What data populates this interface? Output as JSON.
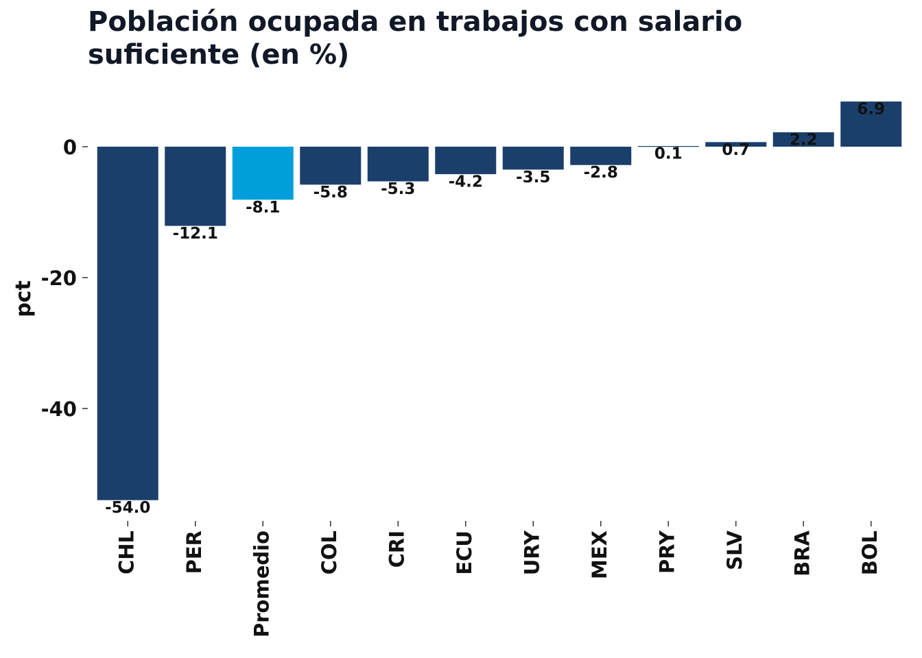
{
  "chart_data": {
    "type": "bar",
    "title": "Población ocupada en trabajos con salario suficiente (en %)",
    "ylabel": "pct",
    "xlabel": "",
    "ylim": [
      -55,
      8
    ],
    "yticks": [
      0,
      -20,
      -40
    ],
    "grid": false,
    "categories": [
      "CHL",
      "PER",
      "Promedio",
      "COL",
      "CRI",
      "ECU",
      "URY",
      "MEX",
      "PRY",
      "SLV",
      "BRA",
      "BOL"
    ],
    "values": [
      -54.0,
      -12.1,
      -8.1,
      -5.8,
      -5.3,
      -4.2,
      -3.5,
      -2.8,
      0.1,
      0.7,
      2.2,
      6.9
    ],
    "data_labels": [
      "-54.0",
      "-12.1",
      "-8.1",
      "-5.8",
      "-5.3",
      "-4.2",
      "-3.5",
      "-2.8",
      "0.1",
      "0.7",
      "2.2",
      "6.9"
    ],
    "colors": {
      "default": "#1b3f6b",
      "highlight": "#009fdb",
      "highlight_category": "Promedio"
    }
  }
}
